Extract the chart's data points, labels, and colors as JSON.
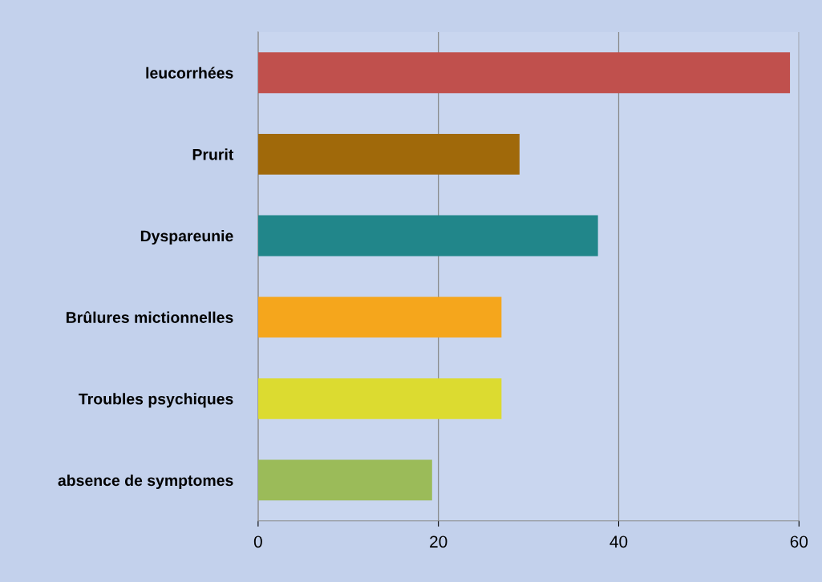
{
  "chart_data": {
    "type": "bar",
    "orientation": "horizontal",
    "categories": [
      "leucorrhées",
      "Prurit",
      "Dyspareunie",
      "Brûlures mictionnelles",
      "Troubles psychiques",
      "absence de symptomes"
    ],
    "values": [
      59,
      29,
      37.7,
      27,
      27,
      19.3
    ],
    "colors": [
      "#c0504d",
      "#a0690a",
      "#21868a",
      "#f5a61c",
      "#dcdb30",
      "#9bbb59"
    ],
    "xlim": [
      0,
      60
    ],
    "xticks": [
      0,
      20,
      40,
      60
    ],
    "grid": "x"
  }
}
